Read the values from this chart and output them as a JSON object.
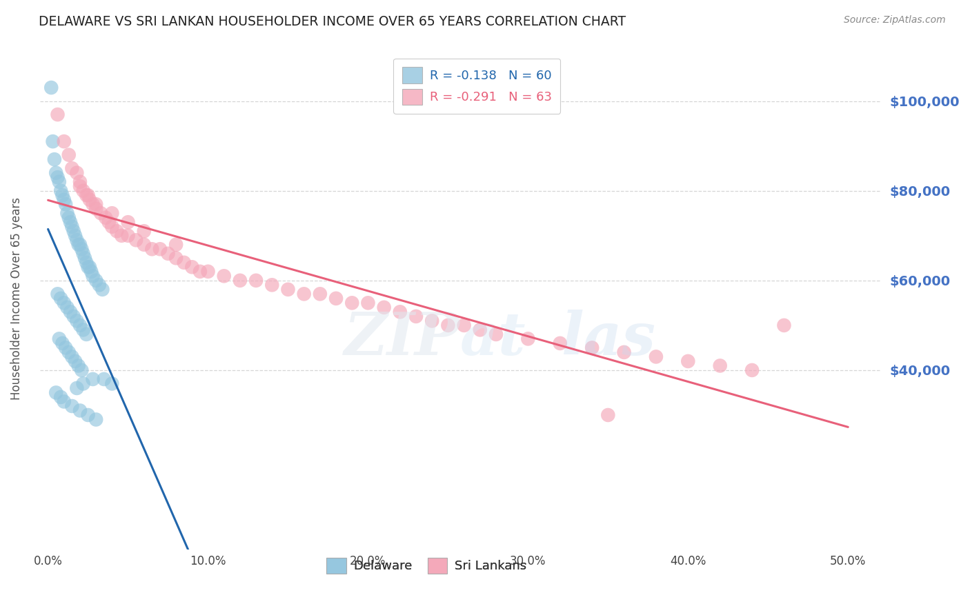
{
  "title": "DELAWARE VS SRI LANKAN HOUSEHOLDER INCOME OVER 65 YEARS CORRELATION CHART",
  "source": "Source: ZipAtlas.com",
  "ylabel": "Householder Income Over 65 years",
  "xlabel_ticks": [
    "0.0%",
    "10.0%",
    "20.0%",
    "30.0%",
    "40.0%",
    "50.0%"
  ],
  "xlabel_vals": [
    0.0,
    0.1,
    0.2,
    0.3,
    0.4,
    0.5
  ],
  "ytick_labels": [
    "$100,000",
    "$80,000",
    "$60,000",
    "$40,000"
  ],
  "ytick_vals": [
    100000,
    80000,
    60000,
    40000
  ],
  "ylim": [
    0,
    112000
  ],
  "xlim": [
    -0.005,
    0.52
  ],
  "delaware_R": -0.138,
  "delaware_N": 60,
  "srilankan_R": -0.291,
  "srilankan_N": 63,
  "delaware_color": "#92c5de",
  "srilankan_color": "#f4a6b8",
  "delaware_line_color": "#2166ac",
  "srilankan_line_color": "#e8607a",
  "dashed_line_color": "#aaaaaa",
  "delaware_x": [
    0.002,
    0.003,
    0.004,
    0.005,
    0.006,
    0.007,
    0.008,
    0.009,
    0.01,
    0.011,
    0.012,
    0.013,
    0.014,
    0.015,
    0.016,
    0.017,
    0.018,
    0.019,
    0.02,
    0.021,
    0.022,
    0.023,
    0.024,
    0.025,
    0.026,
    0.027,
    0.028,
    0.03,
    0.032,
    0.034,
    0.006,
    0.008,
    0.01,
    0.012,
    0.014,
    0.016,
    0.018,
    0.02,
    0.022,
    0.024,
    0.007,
    0.009,
    0.011,
    0.013,
    0.015,
    0.017,
    0.019,
    0.021,
    0.035,
    0.04,
    0.005,
    0.008,
    0.01,
    0.015,
    0.02,
    0.025,
    0.03,
    0.018,
    0.022,
    0.028
  ],
  "delaware_y": [
    103000,
    91000,
    87000,
    84000,
    83000,
    82000,
    80000,
    79000,
    78000,
    77000,
    75000,
    74000,
    73000,
    72000,
    71000,
    70000,
    69000,
    68000,
    68000,
    67000,
    66000,
    65000,
    64000,
    63000,
    63000,
    62000,
    61000,
    60000,
    59000,
    58000,
    57000,
    56000,
    55000,
    54000,
    53000,
    52000,
    51000,
    50000,
    49000,
    48000,
    47000,
    46000,
    45000,
    44000,
    43000,
    42000,
    41000,
    40000,
    38000,
    37000,
    35000,
    34000,
    33000,
    32000,
    31000,
    30000,
    29000,
    36000,
    37000,
    38000
  ],
  "srilankan_x": [
    0.006,
    0.01,
    0.013,
    0.015,
    0.018,
    0.02,
    0.022,
    0.024,
    0.026,
    0.028,
    0.03,
    0.033,
    0.036,
    0.038,
    0.04,
    0.043,
    0.046,
    0.05,
    0.055,
    0.06,
    0.065,
    0.07,
    0.075,
    0.08,
    0.085,
    0.09,
    0.095,
    0.1,
    0.11,
    0.12,
    0.13,
    0.14,
    0.15,
    0.16,
    0.17,
    0.18,
    0.19,
    0.2,
    0.21,
    0.22,
    0.23,
    0.24,
    0.25,
    0.26,
    0.27,
    0.28,
    0.3,
    0.32,
    0.34,
    0.36,
    0.38,
    0.4,
    0.42,
    0.44,
    0.46,
    0.02,
    0.025,
    0.03,
    0.04,
    0.05,
    0.06,
    0.08,
    0.35
  ],
  "srilankan_y": [
    97000,
    91000,
    88000,
    85000,
    84000,
    82000,
    80000,
    79000,
    78000,
    77000,
    76000,
    75000,
    74000,
    73000,
    72000,
    71000,
    70000,
    70000,
    69000,
    68000,
    67000,
    67000,
    66000,
    65000,
    64000,
    63000,
    62000,
    62000,
    61000,
    60000,
    60000,
    59000,
    58000,
    57000,
    57000,
    56000,
    55000,
    55000,
    54000,
    53000,
    52000,
    51000,
    50000,
    50000,
    49000,
    48000,
    47000,
    46000,
    45000,
    44000,
    43000,
    42000,
    41000,
    40000,
    50000,
    81000,
    79000,
    77000,
    75000,
    73000,
    71000,
    68000,
    30000
  ],
  "background_color": "#ffffff",
  "grid_color": "#cccccc",
  "title_color": "#222222",
  "axis_label_color": "#555555",
  "right_tick_color": "#4472c4"
}
